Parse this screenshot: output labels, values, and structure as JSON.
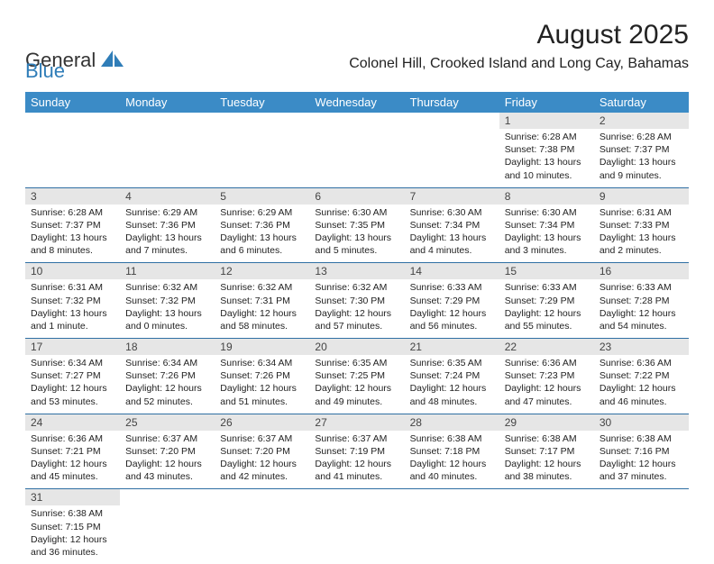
{
  "logo_text_1": "General",
  "logo_text_2": "Blue",
  "brand_color": "#2f7db8",
  "month_title": "August 2025",
  "location": "Colonel Hill, Crooked Island and Long Cay, Bahamas",
  "header_bg": "#3b8bc6",
  "header_fg": "#ffffff",
  "daynum_bg": "#e6e6e6",
  "row_border": "#2f6fa3",
  "weekdays": [
    "Sunday",
    "Monday",
    "Tuesday",
    "Wednesday",
    "Thursday",
    "Friday",
    "Saturday"
  ],
  "weeks": [
    [
      null,
      null,
      null,
      null,
      null,
      {
        "n": "1",
        "sr": "Sunrise: 6:28 AM",
        "ss": "Sunset: 7:38 PM",
        "dl1": "Daylight: 13 hours",
        "dl2": "and 10 minutes."
      },
      {
        "n": "2",
        "sr": "Sunrise: 6:28 AM",
        "ss": "Sunset: 7:37 PM",
        "dl1": "Daylight: 13 hours",
        "dl2": "and 9 minutes."
      }
    ],
    [
      {
        "n": "3",
        "sr": "Sunrise: 6:28 AM",
        "ss": "Sunset: 7:37 PM",
        "dl1": "Daylight: 13 hours",
        "dl2": "and 8 minutes."
      },
      {
        "n": "4",
        "sr": "Sunrise: 6:29 AM",
        "ss": "Sunset: 7:36 PM",
        "dl1": "Daylight: 13 hours",
        "dl2": "and 7 minutes."
      },
      {
        "n": "5",
        "sr": "Sunrise: 6:29 AM",
        "ss": "Sunset: 7:36 PM",
        "dl1": "Daylight: 13 hours",
        "dl2": "and 6 minutes."
      },
      {
        "n": "6",
        "sr": "Sunrise: 6:30 AM",
        "ss": "Sunset: 7:35 PM",
        "dl1": "Daylight: 13 hours",
        "dl2": "and 5 minutes."
      },
      {
        "n": "7",
        "sr": "Sunrise: 6:30 AM",
        "ss": "Sunset: 7:34 PM",
        "dl1": "Daylight: 13 hours",
        "dl2": "and 4 minutes."
      },
      {
        "n": "8",
        "sr": "Sunrise: 6:30 AM",
        "ss": "Sunset: 7:34 PM",
        "dl1": "Daylight: 13 hours",
        "dl2": "and 3 minutes."
      },
      {
        "n": "9",
        "sr": "Sunrise: 6:31 AM",
        "ss": "Sunset: 7:33 PM",
        "dl1": "Daylight: 13 hours",
        "dl2": "and 2 minutes."
      }
    ],
    [
      {
        "n": "10",
        "sr": "Sunrise: 6:31 AM",
        "ss": "Sunset: 7:32 PM",
        "dl1": "Daylight: 13 hours",
        "dl2": "and 1 minute."
      },
      {
        "n": "11",
        "sr": "Sunrise: 6:32 AM",
        "ss": "Sunset: 7:32 PM",
        "dl1": "Daylight: 13 hours",
        "dl2": "and 0 minutes."
      },
      {
        "n": "12",
        "sr": "Sunrise: 6:32 AM",
        "ss": "Sunset: 7:31 PM",
        "dl1": "Daylight: 12 hours",
        "dl2": "and 58 minutes."
      },
      {
        "n": "13",
        "sr": "Sunrise: 6:32 AM",
        "ss": "Sunset: 7:30 PM",
        "dl1": "Daylight: 12 hours",
        "dl2": "and 57 minutes."
      },
      {
        "n": "14",
        "sr": "Sunrise: 6:33 AM",
        "ss": "Sunset: 7:29 PM",
        "dl1": "Daylight: 12 hours",
        "dl2": "and 56 minutes."
      },
      {
        "n": "15",
        "sr": "Sunrise: 6:33 AM",
        "ss": "Sunset: 7:29 PM",
        "dl1": "Daylight: 12 hours",
        "dl2": "and 55 minutes."
      },
      {
        "n": "16",
        "sr": "Sunrise: 6:33 AM",
        "ss": "Sunset: 7:28 PM",
        "dl1": "Daylight: 12 hours",
        "dl2": "and 54 minutes."
      }
    ],
    [
      {
        "n": "17",
        "sr": "Sunrise: 6:34 AM",
        "ss": "Sunset: 7:27 PM",
        "dl1": "Daylight: 12 hours",
        "dl2": "and 53 minutes."
      },
      {
        "n": "18",
        "sr": "Sunrise: 6:34 AM",
        "ss": "Sunset: 7:26 PM",
        "dl1": "Daylight: 12 hours",
        "dl2": "and 52 minutes."
      },
      {
        "n": "19",
        "sr": "Sunrise: 6:34 AM",
        "ss": "Sunset: 7:26 PM",
        "dl1": "Daylight: 12 hours",
        "dl2": "and 51 minutes."
      },
      {
        "n": "20",
        "sr": "Sunrise: 6:35 AM",
        "ss": "Sunset: 7:25 PM",
        "dl1": "Daylight: 12 hours",
        "dl2": "and 49 minutes."
      },
      {
        "n": "21",
        "sr": "Sunrise: 6:35 AM",
        "ss": "Sunset: 7:24 PM",
        "dl1": "Daylight: 12 hours",
        "dl2": "and 48 minutes."
      },
      {
        "n": "22",
        "sr": "Sunrise: 6:36 AM",
        "ss": "Sunset: 7:23 PM",
        "dl1": "Daylight: 12 hours",
        "dl2": "and 47 minutes."
      },
      {
        "n": "23",
        "sr": "Sunrise: 6:36 AM",
        "ss": "Sunset: 7:22 PM",
        "dl1": "Daylight: 12 hours",
        "dl2": "and 46 minutes."
      }
    ],
    [
      {
        "n": "24",
        "sr": "Sunrise: 6:36 AM",
        "ss": "Sunset: 7:21 PM",
        "dl1": "Daylight: 12 hours",
        "dl2": "and 45 minutes."
      },
      {
        "n": "25",
        "sr": "Sunrise: 6:37 AM",
        "ss": "Sunset: 7:20 PM",
        "dl1": "Daylight: 12 hours",
        "dl2": "and 43 minutes."
      },
      {
        "n": "26",
        "sr": "Sunrise: 6:37 AM",
        "ss": "Sunset: 7:20 PM",
        "dl1": "Daylight: 12 hours",
        "dl2": "and 42 minutes."
      },
      {
        "n": "27",
        "sr": "Sunrise: 6:37 AM",
        "ss": "Sunset: 7:19 PM",
        "dl1": "Daylight: 12 hours",
        "dl2": "and 41 minutes."
      },
      {
        "n": "28",
        "sr": "Sunrise: 6:38 AM",
        "ss": "Sunset: 7:18 PM",
        "dl1": "Daylight: 12 hours",
        "dl2": "and 40 minutes."
      },
      {
        "n": "29",
        "sr": "Sunrise: 6:38 AM",
        "ss": "Sunset: 7:17 PM",
        "dl1": "Daylight: 12 hours",
        "dl2": "and 38 minutes."
      },
      {
        "n": "30",
        "sr": "Sunrise: 6:38 AM",
        "ss": "Sunset: 7:16 PM",
        "dl1": "Daylight: 12 hours",
        "dl2": "and 37 minutes."
      }
    ],
    [
      {
        "n": "31",
        "sr": "Sunrise: 6:38 AM",
        "ss": "Sunset: 7:15 PM",
        "dl1": "Daylight: 12 hours",
        "dl2": "and 36 minutes."
      },
      null,
      null,
      null,
      null,
      null,
      null
    ]
  ]
}
